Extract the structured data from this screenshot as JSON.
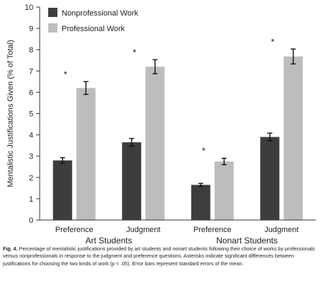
{
  "chart_data": {
    "type": "bar",
    "ylabel": "Mentalistic Justifications Given (% of Total)",
    "ylim": [
      0,
      10
    ],
    "yticks": [
      0,
      1,
      2,
      3,
      4,
      5,
      6,
      7,
      8,
      9,
      10
    ],
    "groups": [
      "Art Students",
      "Nonart Students"
    ],
    "categories": [
      "Preference",
      "Judgment",
      "Preference",
      "Judgment"
    ],
    "category_group": [
      0,
      0,
      1,
      1
    ],
    "legend_position": "top-left",
    "grid": false,
    "series": [
      {
        "name": "Nonprofessional Work",
        "color": "#3d3d3d",
        "values": [
          2.8,
          3.65,
          1.65,
          3.9
        ],
        "errors": [
          0.13,
          0.18,
          0.07,
          0.18
        ]
      },
      {
        "name": "Professional Work",
        "color": "#bdbdbd",
        "values": [
          6.2,
          7.2,
          2.75,
          7.68
        ],
        "errors": [
          0.3,
          0.33,
          0.15,
          0.35
        ]
      }
    ],
    "significance_marker": "*",
    "significant": [
      true,
      true,
      true,
      true
    ]
  },
  "caption": {
    "label": "Fig. 4.",
    "text": "Percentage of mentalistic justifications provided by art students and nonart students following their choice of works by professionals versus nonprofessionals in response to the judgment and preference questions. Asterisks indicate significant differences between justifications for choosing the two kinds of work (p < .05). Error bars represent standard errors of the mean."
  }
}
